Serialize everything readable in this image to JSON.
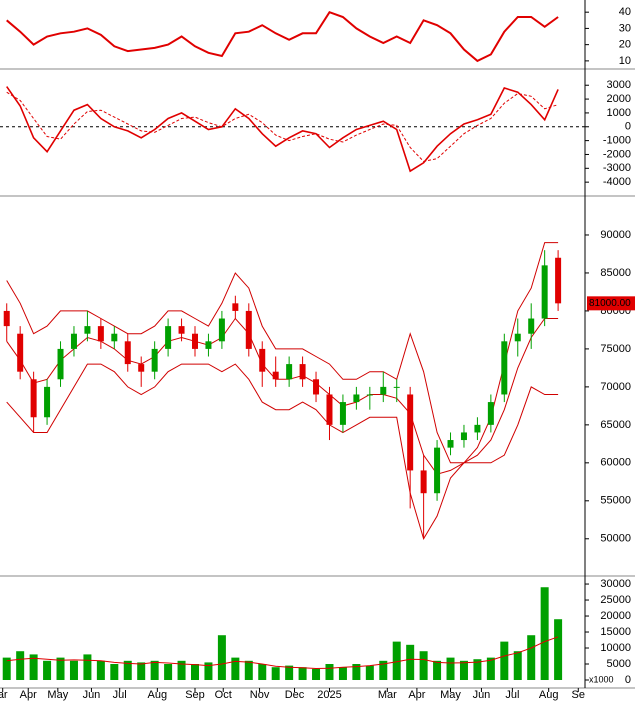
{
  "chart_data": [
    {
      "type": "line",
      "ylim": [
        5,
        47.5
      ],
      "yticks": [
        10,
        20,
        30,
        40
      ],
      "xlim": [
        0,
        43.5
      ],
      "series": [
        {
          "color": "#e00000",
          "values": [
            35,
            28,
            20,
            25,
            27,
            28,
            30,
            26,
            19,
            16,
            17,
            18,
            20,
            25,
            19,
            15,
            13,
            27,
            28,
            32,
            27,
            23,
            27,
            27,
            40,
            37,
            30,
            25,
            21,
            25,
            21,
            35,
            32,
            27,
            17,
            10,
            14,
            28,
            37,
            37,
            31,
            37
          ]
        }
      ]
    },
    {
      "type": "line",
      "ylim": [
        -5000,
        4100
      ],
      "yticks": [
        -4000,
        -3000,
        -2000,
        -1000,
        0,
        1000,
        2000,
        3000
      ],
      "xlim": [
        0,
        43.5
      ],
      "reference_line": 0,
      "series": [
        {
          "color": "#e00000",
          "values": [
            2900,
            1500,
            -800,
            -1800,
            -300,
            1200,
            1600,
            600,
            0,
            -300,
            -800,
            -200,
            600,
            1000,
            400,
            -200,
            0,
            1300,
            600,
            -500,
            -1400,
            -800,
            -300,
            -500,
            -1500,
            -800,
            -200,
            100,
            400,
            -200,
            -3200,
            -2600,
            -1400,
            -500,
            200,
            500,
            900,
            2800,
            2500,
            1600,
            500,
            2700
          ]
        },
        {
          "color": "#e00000",
          "dash": true,
          "values": [
            2500,
            1900,
            600,
            -700,
            -900,
            200,
            1100,
            1200,
            700,
            200,
            -300,
            -400,
            100,
            600,
            700,
            300,
            0,
            600,
            900,
            300,
            -600,
            -1000,
            -700,
            -500,
            -900,
            -1100,
            -600,
            -200,
            200,
            100,
            -1500,
            -2500,
            -2300,
            -1400,
            -500,
            100,
            600,
            1700,
            2400,
            2200,
            1300,
            1600
          ]
        }
      ]
    },
    {
      "type": "candlestick",
      "ylim": [
        45100,
        95000
      ],
      "yticks": [
        50000,
        55000,
        60000,
        65000,
        70000,
        75000,
        80000,
        85000,
        90000
      ],
      "xlim": [
        0,
        43.5
      ],
      "up_color": "#00a000",
      "down_color": "#e00000",
      "open": [
        80000,
        77000,
        71000,
        66000,
        71000,
        75000,
        77000,
        78000,
        76000,
        76000,
        73000,
        72000,
        75000,
        78000,
        77000,
        75000,
        76000,
        81000,
        80000,
        75000,
        72000,
        71000,
        73000,
        71000,
        69000,
        65000,
        68000,
        69000,
        69000,
        70000,
        69000,
        59000,
        56000,
        62000,
        63000,
        64000,
        65000,
        69000,
        76000,
        77000,
        79000,
        87000
      ],
      "high": [
        81000,
        78000,
        72000,
        71000,
        76000,
        78000,
        80000,
        79000,
        78000,
        77000,
        74000,
        76000,
        79000,
        79000,
        78000,
        77000,
        80000,
        82000,
        81000,
        76000,
        74000,
        74000,
        74000,
        72000,
        70000,
        69000,
        70000,
        70000,
        72000,
        71000,
        70000,
        61000,
        63000,
        64000,
        65000,
        66000,
        69000,
        77000,
        79000,
        81000,
        88000,
        88000
      ],
      "low": [
        76000,
        71000,
        64000,
        65000,
        70000,
        74000,
        76000,
        75000,
        75000,
        72000,
        70000,
        71000,
        74000,
        76000,
        74000,
        74000,
        75000,
        79000,
        74000,
        70000,
        70000,
        70000,
        70000,
        68000,
        63000,
        64000,
        67000,
        67000,
        68000,
        68000,
        54000,
        50000,
        55000,
        61000,
        62000,
        63000,
        64000,
        68000,
        74000,
        75000,
        78000,
        80000
      ],
      "close": [
        78000,
        72000,
        66000,
        70000,
        75000,
        77000,
        78000,
        76000,
        77000,
        73000,
        72000,
        75000,
        78000,
        77000,
        75000,
        76000,
        79000,
        80000,
        75000,
        72000,
        71000,
        73000,
        71000,
        69000,
        65000,
        68000,
        69000,
        69000,
        70000,
        70000,
        59000,
        56000,
        62000,
        63000,
        64000,
        65000,
        68000,
        76000,
        77000,
        79000,
        86000,
        81000
      ],
      "series": [
        {
          "color": "#d00000",
          "values": [
            84000,
            81000,
            77000,
            78000,
            80000,
            80000,
            80000,
            79000,
            78000,
            77000,
            77000,
            78000,
            80000,
            80000,
            79000,
            78000,
            81000,
            85000,
            83000,
            78000,
            75000,
            75000,
            75000,
            74000,
            73000,
            71000,
            71000,
            72000,
            72000,
            71000,
            77000,
            72000,
            64000,
            60000,
            60000,
            62000,
            66000,
            73000,
            80000,
            83000,
            89000,
            89000
          ]
        },
        {
          "color": "#d00000",
          "values": [
            76000,
            73500,
            70500,
            71000,
            73500,
            75000,
            76500,
            76000,
            75000,
            73500,
            73000,
            74000,
            76000,
            76500,
            76000,
            75500,
            76500,
            79000,
            77000,
            73000,
            71000,
            71000,
            71500,
            70500,
            69000,
            67500,
            68000,
            69000,
            69000,
            68500,
            66500,
            61000,
            58500,
            59000,
            60000,
            61000,
            63000,
            67000,
            72500,
            76500,
            79000,
            79000
          ]
        },
        {
          "color": "#d00000",
          "values": [
            68000,
            66000,
            64000,
            64000,
            67000,
            70000,
            73000,
            73000,
            72000,
            70000,
            69000,
            70000,
            72000,
            73000,
            73000,
            73000,
            72000,
            73000,
            71000,
            68000,
            67000,
            67000,
            68000,
            67000,
            65000,
            64000,
            65000,
            66000,
            66000,
            66000,
            56000,
            50000,
            53000,
            58000,
            60000,
            60000,
            60000,
            61000,
            65000,
            70000,
            69000,
            69000
          ]
        }
      ],
      "last_price": {
        "value": 81000,
        "label": "81000.00"
      }
    },
    {
      "type": "bar",
      "ylim": [
        -2500,
        32200
      ],
      "yticks": [
        0,
        5000,
        10000,
        15000,
        20000,
        25000,
        30000
      ],
      "xlim": [
        0,
        43.5
      ],
      "volume_unit": "x1000",
      "values": [
        7000,
        9000,
        8000,
        6000,
        7000,
        6000,
        8000,
        6000,
        5000,
        6000,
        5500,
        6000,
        5000,
        6000,
        5000,
        5500,
        14000,
        7000,
        6000,
        5000,
        4000,
        4500,
        4000,
        3500,
        5000,
        4000,
        5000,
        4500,
        6000,
        12000,
        11000,
        9000,
        6000,
        7000,
        6000,
        6500,
        7000,
        12000,
        9000,
        14000,
        29000,
        19000
      ],
      "color": "#00a000",
      "series": [
        {
          "color": "#e00000",
          "values": [
            6000,
            6500,
            6800,
            6500,
            6200,
            6300,
            6200,
            6000,
            5500,
            5200,
            5000,
            5500,
            5300,
            5000,
            4800,
            4500,
            5000,
            5800,
            5600,
            5000,
            4300,
            4000,
            3800,
            3600,
            3700,
            4000,
            4200,
            4500,
            5000,
            5700,
            6500,
            6400,
            5500,
            5300,
            5400,
            5600,
            6200,
            7500,
            8500,
            10000,
            12000,
            13500
          ]
        }
      ],
      "xticks": [
        {
          "value": 0.2,
          "label": "ar"
        },
        {
          "value": 2.1,
          "label": "Apr"
        },
        {
          "value": 4.3,
          "label": "May"
        },
        {
          "value": 6.8,
          "label": "Jun"
        },
        {
          "value": 8.9,
          "label": "Jul"
        },
        {
          "value": 11.7,
          "label": "Aug"
        },
        {
          "value": 14.5,
          "label": "Sep"
        },
        {
          "value": 16.6,
          "label": "Oct"
        },
        {
          "value": 19.3,
          "label": "Nov"
        },
        {
          "value": 21.9,
          "label": "Dec"
        },
        {
          "value": 24.5,
          "label": "2025"
        },
        {
          "value": 28.8,
          "label": "Mar"
        },
        {
          "value": 31,
          "label": "Apr"
        },
        {
          "value": 33.5,
          "label": "May"
        },
        {
          "value": 35.8,
          "label": "Jun"
        },
        {
          "value": 38.1,
          "label": "Jul"
        },
        {
          "value": 40.8,
          "label": "Aug"
        },
        {
          "value": 43,
          "label": "Se"
        }
      ]
    }
  ]
}
